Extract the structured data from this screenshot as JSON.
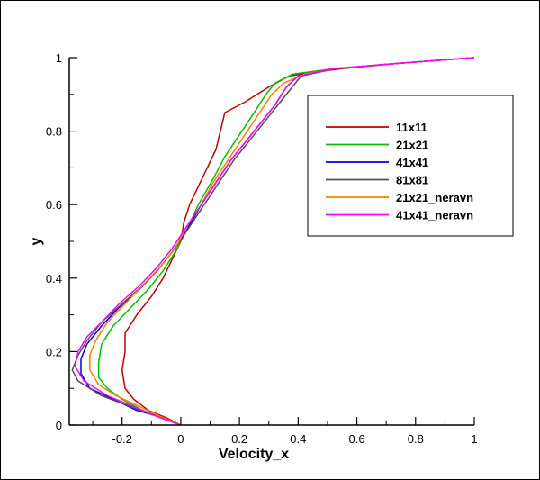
{
  "chart_data": {
    "type": "line",
    "title": "",
    "xlabel": "Velocity_x",
    "ylabel": "y",
    "xlim": [
      -0.38,
      1.0
    ],
    "ylim": [
      0,
      1
    ],
    "x_ticks": [
      "-0.2",
      "0",
      "0.2",
      "0.4",
      "0.6",
      "0.8",
      "1"
    ],
    "x_tick_values": [
      -0.2,
      0,
      0.2,
      0.4,
      0.6,
      0.8,
      1.0
    ],
    "y_ticks": [
      "0",
      "0.2",
      "0.4",
      "0.6",
      "0.8",
      "1"
    ],
    "y_tick_values": [
      0,
      0.2,
      0.4,
      0.6,
      0.8,
      1.0
    ],
    "grid": false,
    "legend_position": "top-right",
    "series": [
      {
        "name": "11x11",
        "color": "#c00000",
        "points": [
          [
            0,
            0
          ],
          [
            -0.05,
            0.02
          ],
          [
            -0.11,
            0.04
          ],
          [
            -0.16,
            0.07
          ],
          [
            -0.19,
            0.1
          ],
          [
            -0.2,
            0.15
          ],
          [
            -0.19,
            0.2
          ],
          [
            -0.19,
            0.25
          ],
          [
            -0.15,
            0.3
          ],
          [
            -0.1,
            0.35
          ],
          [
            -0.06,
            0.4
          ],
          [
            -0.03,
            0.45
          ],
          [
            0,
            0.5
          ],
          [
            0.01,
            0.55
          ],
          [
            0.03,
            0.6
          ],
          [
            0.06,
            0.65
          ],
          [
            0.09,
            0.7
          ],
          [
            0.12,
            0.75
          ],
          [
            0.15,
            0.85
          ],
          [
            0.22,
            0.88
          ],
          [
            0.3,
            0.92
          ],
          [
            0.37,
            0.95
          ],
          [
            0.45,
            0.96
          ],
          [
            0.55,
            0.97
          ],
          [
            0.75,
            0.985
          ],
          [
            1.0,
            1.0
          ]
        ]
      },
      {
        "name": "21x21",
        "color": "#00c000",
        "points": [
          [
            0,
            0
          ],
          [
            -0.06,
            0.02
          ],
          [
            -0.13,
            0.04
          ],
          [
            -0.2,
            0.07
          ],
          [
            -0.25,
            0.1
          ],
          [
            -0.28,
            0.13
          ],
          [
            -0.28,
            0.17
          ],
          [
            -0.27,
            0.22
          ],
          [
            -0.23,
            0.27
          ],
          [
            -0.17,
            0.32
          ],
          [
            -0.11,
            0.37
          ],
          [
            -0.06,
            0.42
          ],
          [
            -0.02,
            0.47
          ],
          [
            0.02,
            0.53
          ],
          [
            0.06,
            0.6
          ],
          [
            0.11,
            0.67
          ],
          [
            0.15,
            0.73
          ],
          [
            0.2,
            0.79
          ],
          [
            0.25,
            0.85
          ],
          [
            0.29,
            0.9
          ],
          [
            0.32,
            0.93
          ],
          [
            0.38,
            0.955
          ],
          [
            0.52,
            0.97
          ],
          [
            0.75,
            0.985
          ],
          [
            1.0,
            1.0
          ]
        ]
      },
      {
        "name": "41x41",
        "color": "#0000e0",
        "points": [
          [
            0,
            0
          ],
          [
            -0.06,
            0.02
          ],
          [
            -0.15,
            0.04
          ],
          [
            -0.23,
            0.07
          ],
          [
            -0.31,
            0.1
          ],
          [
            -0.34,
            0.14
          ],
          [
            -0.34,
            0.18
          ],
          [
            -0.32,
            0.22
          ],
          [
            -0.27,
            0.27
          ],
          [
            -0.21,
            0.32
          ],
          [
            -0.14,
            0.37
          ],
          [
            -0.08,
            0.42
          ],
          [
            -0.03,
            0.47
          ],
          [
            0.02,
            0.53
          ],
          [
            0.07,
            0.6
          ],
          [
            0.12,
            0.66
          ],
          [
            0.17,
            0.72
          ],
          [
            0.22,
            0.77
          ],
          [
            0.27,
            0.82
          ],
          [
            0.32,
            0.87
          ],
          [
            0.36,
            0.92
          ],
          [
            0.4,
            0.95
          ],
          [
            0.52,
            0.97
          ],
          [
            0.75,
            0.985
          ],
          [
            1.0,
            1.0
          ]
        ]
      },
      {
        "name": "81x81",
        "color": "#505050",
        "points": [
          [
            0,
            0
          ],
          [
            -0.07,
            0.02
          ],
          [
            -0.17,
            0.05
          ],
          [
            -0.27,
            0.08
          ],
          [
            -0.35,
            0.12
          ],
          [
            -0.37,
            0.15
          ],
          [
            -0.35,
            0.19
          ],
          [
            -0.32,
            0.23
          ],
          [
            -0.27,
            0.28
          ],
          [
            -0.2,
            0.33
          ],
          [
            -0.13,
            0.38
          ],
          [
            -0.07,
            0.43
          ],
          [
            -0.02,
            0.48
          ],
          [
            0.03,
            0.54
          ],
          [
            0.08,
            0.6
          ],
          [
            0.13,
            0.66
          ],
          [
            0.18,
            0.72
          ],
          [
            0.23,
            0.77
          ],
          [
            0.28,
            0.82
          ],
          [
            0.33,
            0.87
          ],
          [
            0.38,
            0.92
          ],
          [
            0.41,
            0.95
          ],
          [
            0.53,
            0.97
          ],
          [
            0.75,
            0.985
          ],
          [
            1.0,
            1.0
          ]
        ]
      },
      {
        "name": "21x21_neravn",
        "color": "#ff8000",
        "points": [
          [
            0,
            0
          ],
          [
            -0.06,
            0.02
          ],
          [
            -0.14,
            0.05
          ],
          [
            -0.22,
            0.08
          ],
          [
            -0.28,
            0.11
          ],
          [
            -0.31,
            0.15
          ],
          [
            -0.31,
            0.19
          ],
          [
            -0.29,
            0.23
          ],
          [
            -0.25,
            0.28
          ],
          [
            -0.19,
            0.33
          ],
          [
            -0.13,
            0.38
          ],
          [
            -0.07,
            0.43
          ],
          [
            -0.02,
            0.48
          ],
          [
            0.02,
            0.54
          ],
          [
            0.07,
            0.6
          ],
          [
            0.11,
            0.66
          ],
          [
            0.16,
            0.72
          ],
          [
            0.21,
            0.78
          ],
          [
            0.26,
            0.84
          ],
          [
            0.31,
            0.9
          ],
          [
            0.35,
            0.93
          ],
          [
            0.42,
            0.955
          ],
          [
            0.52,
            0.97
          ],
          [
            0.75,
            0.985
          ],
          [
            1.0,
            1.0
          ]
        ]
      },
      {
        "name": "41x41_neravn",
        "color": "#ff00ff",
        "points": [
          [
            0,
            0
          ],
          [
            -0.07,
            0.02
          ],
          [
            -0.16,
            0.05
          ],
          [
            -0.25,
            0.08
          ],
          [
            -0.33,
            0.12
          ],
          [
            -0.36,
            0.16
          ],
          [
            -0.35,
            0.2
          ],
          [
            -0.32,
            0.24
          ],
          [
            -0.27,
            0.28
          ],
          [
            -0.21,
            0.33
          ],
          [
            -0.14,
            0.38
          ],
          [
            -0.08,
            0.43
          ],
          [
            -0.03,
            0.48
          ],
          [
            0.02,
            0.54
          ],
          [
            0.07,
            0.6
          ],
          [
            0.12,
            0.66
          ],
          [
            0.17,
            0.72
          ],
          [
            0.22,
            0.77
          ],
          [
            0.27,
            0.82
          ],
          [
            0.32,
            0.87
          ],
          [
            0.36,
            0.92
          ],
          [
            0.4,
            0.95
          ],
          [
            0.52,
            0.97
          ],
          [
            0.75,
            0.985
          ],
          [
            1.0,
            1.0
          ]
        ]
      }
    ]
  }
}
